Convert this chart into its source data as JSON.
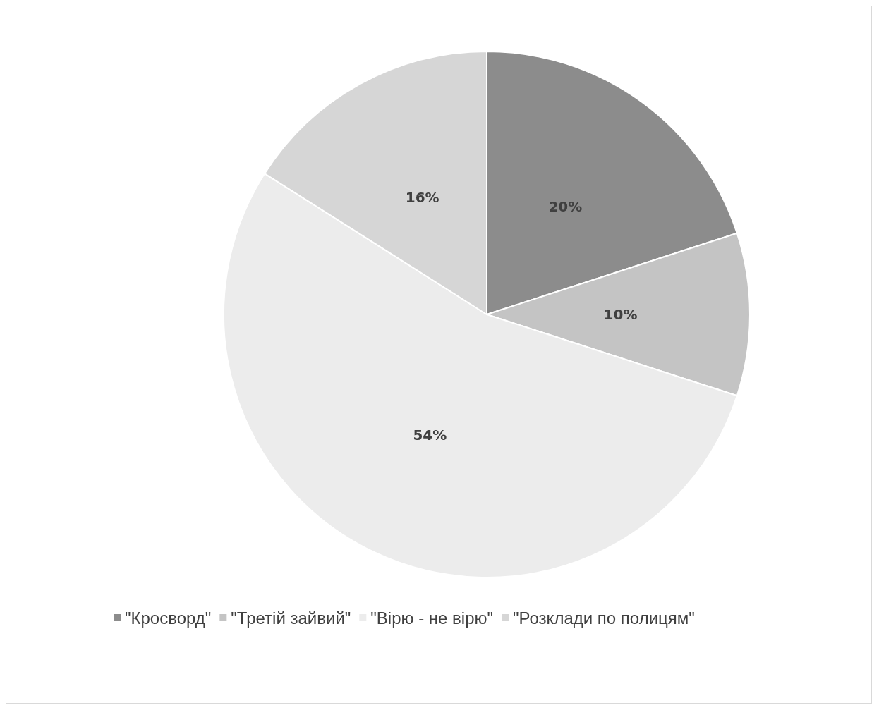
{
  "chart_data": {
    "type": "pie",
    "categories": [
      "\"Кросворд\"",
      "\"Третій зайвий\"",
      "\"Вірю - не вірю\"",
      "\"Розклади по полицям\""
    ],
    "values": [
      20,
      10,
      54,
      16
    ],
    "value_labels": [
      "20%",
      "10%",
      "54%",
      "16%"
    ],
    "colors": [
      "#8c8c8c",
      "#c4c4c4",
      "#ececec",
      "#d6d6d6"
    ],
    "legend": "bottom"
  }
}
